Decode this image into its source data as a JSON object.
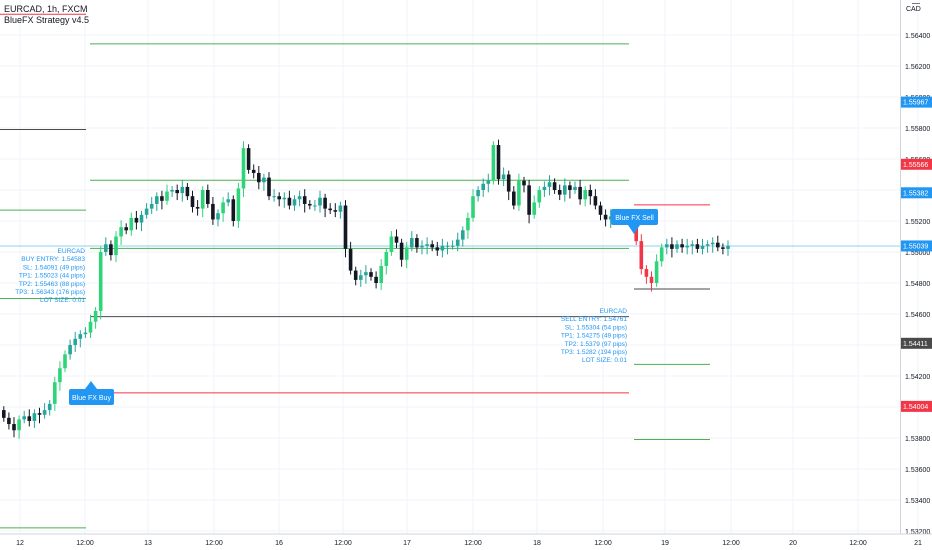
{
  "header": {
    "symbol": "EURCAD, 1h, FXCM",
    "strategy": "BlueFX Strategy v4.5"
  },
  "price_axis": {
    "currency": "CAD",
    "ticks": [
      "1.56400",
      "1.56200",
      "1.56000",
      "1.55800",
      "1.55600",
      "1.55400",
      "1.55200",
      "1.55000",
      "1.54800",
      "1.54600",
      "1.54400",
      "1.54200",
      "1.54000",
      "1.53800",
      "1.53600",
      "1.53400",
      "1.53200"
    ],
    "labels": [
      {
        "text": "1.55967",
        "color": "#2196f3"
      },
      {
        "text": "1.55566",
        "color": "#f23645"
      },
      {
        "text": "1.55382",
        "color": "#2196f3"
      },
      {
        "text": "1.55039",
        "color": "#2196f3"
      },
      {
        "text": "1.54411",
        "color": "#4a4a4a"
      },
      {
        "text": "1.54004",
        "color": "#f23645"
      }
    ]
  },
  "time_axis": {
    "labels": [
      "12",
      "12:00",
      "13",
      "12:00",
      "16",
      "12:00",
      "17",
      "12:00",
      "18",
      "12:00",
      "19",
      "12:00",
      "20",
      "12:00",
      "21"
    ]
  },
  "buy_signal": {
    "button": "Blue FX Buy",
    "info": [
      "EURCAD",
      "BUY ENTRY: 1.54583",
      "SL: 1.54091 (49 pips)",
      "TP1: 1.55023 (44 pips)",
      "TP2: 1.55463 (88 pips)",
      "TP3: 1.56343 (176 pips)",
      "LOT SIZE: 0.01"
    ]
  },
  "sell_signal": {
    "button": "Blue FX Sell",
    "info": [
      "EURCAD",
      "SELL ENTRY: 1.54761",
      "SL: 1.55304 (54 pips)",
      "TP1: 1.54275 (49 pips)",
      "TP2: 1.5379 (97 pips)",
      "TP3: 1.5282 (194 pips)",
      "LOT SIZE: 0.01"
    ]
  },
  "colors": {
    "bull": "#26a69a",
    "bull_strong": "#2ed47a",
    "bear": "#131722",
    "blue": "#2196f3",
    "red": "#f23645",
    "tp_line": "#4caf50",
    "sl_line": "#f23645",
    "entry_line": "#4a4a4a",
    "grid": "#f0f3fa"
  }
}
